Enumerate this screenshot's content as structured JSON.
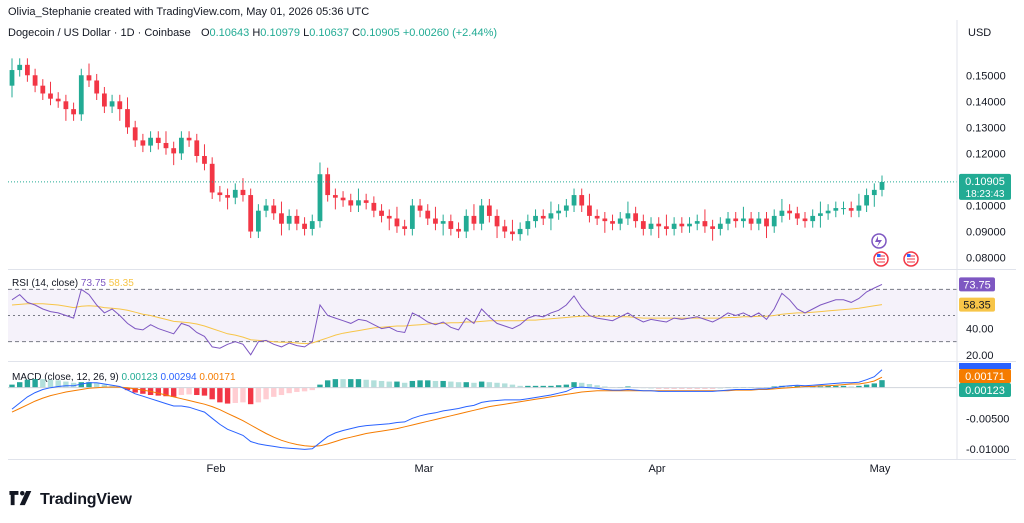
{
  "header": {
    "credit": "Olivia_Stephanie created with TradingView.com, May 01, 2026 05:36 UTC",
    "symbol": "Dogecoin / US Dollar · 1D · Coinbase",
    "open_label": "O",
    "open": "0.10643",
    "high_label": "H",
    "high": "0.10979",
    "low_label": "L",
    "low": "0.10637",
    "close_label": "C",
    "close": "0.10905",
    "change": "+0.00260 (+2.44%)",
    "currency": "USD"
  },
  "brand": {
    "name": "TradingView"
  },
  "colors": {
    "up": "#22ab94",
    "down": "#f23645",
    "rsi": "#7e57c2",
    "rsi_ma": "#f7c548",
    "macd": "#2962ff",
    "signal": "#f57c00"
  },
  "chart_data": [
    {
      "type": "candlestick",
      "title": "Dogecoin / US Dollar · 1D · Coinbase",
      "ylim": [
        0.076,
        0.162
      ],
      "y_ticks": [
        "0.15000",
        "0.14000",
        "0.13000",
        "0.12000",
        "0.10000",
        "0.09000",
        "0.08000"
      ],
      "y_tick_values": [
        0.15,
        0.14,
        0.13,
        0.12,
        0.1,
        0.09,
        0.08
      ],
      "x_ticks": [
        "Feb",
        "Mar",
        "Apr",
        "May"
      ],
      "last_price": "0.10905",
      "countdown": "18:23:43",
      "close": [
        0.152,
        0.154,
        0.15,
        0.146,
        0.143,
        0.141,
        0.14,
        0.137,
        0.135,
        0.15,
        0.148,
        0.143,
        0.138,
        0.14,
        0.137,
        0.13,
        0.125,
        0.123,
        0.126,
        0.124,
        0.122,
        0.12,
        0.126,
        0.125,
        0.119,
        0.116,
        0.105,
        0.104,
        0.103,
        0.106,
        0.104,
        0.09,
        0.098,
        0.1,
        0.097,
        0.093,
        0.096,
        0.093,
        0.091,
        0.094,
        0.112,
        0.104,
        0.103,
        0.102,
        0.1,
        0.102,
        0.101,
        0.098,
        0.096,
        0.095,
        0.092,
        0.091,
        0.1,
        0.098,
        0.095,
        0.093,
        0.094,
        0.091,
        0.09,
        0.096,
        0.093,
        0.1,
        0.096,
        0.092,
        0.09,
        0.089,
        0.091,
        0.094,
        0.096,
        0.095,
        0.097,
        0.098,
        0.1,
        0.104,
        0.1,
        0.096,
        0.095,
        0.094,
        0.093,
        0.095,
        0.097,
        0.094,
        0.091,
        0.093,
        0.092,
        0.091,
        0.093,
        0.092,
        0.093,
        0.094,
        0.092,
        0.091,
        0.093,
        0.095,
        0.094,
        0.095,
        0.093,
        0.095,
        0.092,
        0.096,
        0.098,
        0.097,
        0.095,
        0.094,
        0.096,
        0.097,
        0.098,
        0.099,
        0.099,
        0.098,
        0.1,
        0.104,
        0.106,
        0.109
      ],
      "open": [
        0.146,
        0.152,
        0.154,
        0.15,
        0.146,
        0.143,
        0.141,
        0.14,
        0.137,
        0.135,
        0.15,
        0.148,
        0.143,
        0.138,
        0.14,
        0.137,
        0.13,
        0.125,
        0.123,
        0.126,
        0.124,
        0.122,
        0.12,
        0.126,
        0.125,
        0.119,
        0.116,
        0.105,
        0.104,
        0.103,
        0.106,
        0.104,
        0.09,
        0.098,
        0.1,
        0.097,
        0.093,
        0.096,
        0.093,
        0.091,
        0.094,
        0.112,
        0.104,
        0.103,
        0.102,
        0.1,
        0.102,
        0.101,
        0.098,
        0.096,
        0.095,
        0.092,
        0.091,
        0.1,
        0.098,
        0.095,
        0.093,
        0.094,
        0.091,
        0.09,
        0.096,
        0.093,
        0.1,
        0.096,
        0.092,
        0.09,
        0.089,
        0.091,
        0.094,
        0.096,
        0.095,
        0.097,
        0.098,
        0.1,
        0.104,
        0.1,
        0.096,
        0.095,
        0.094,
        0.093,
        0.095,
        0.097,
        0.094,
        0.091,
        0.093,
        0.092,
        0.091,
        0.093,
        0.092,
        0.093,
        0.094,
        0.092,
        0.091,
        0.093,
        0.095,
        0.094,
        0.095,
        0.093,
        0.095,
        0.092,
        0.096,
        0.098,
        0.097,
        0.095,
        0.094,
        0.096,
        0.097,
        0.098,
        0.099,
        0.099,
        0.098,
        0.1,
        0.104,
        0.106
      ]
    },
    {
      "type": "line",
      "title": "RSI (14, close)",
      "series": [
        {
          "name": "RSI",
          "values": [
            62,
            66,
            60,
            58,
            55,
            53,
            52,
            50,
            48,
            70,
            66,
            58,
            52,
            55,
            50,
            44,
            40,
            39,
            43,
            40,
            38,
            36,
            44,
            42,
            37,
            34,
            26,
            25,
            28,
            30,
            28,
            20,
            30,
            31,
            28,
            26,
            29,
            27,
            26,
            30,
            58,
            50,
            48,
            46,
            44,
            47,
            46,
            43,
            40,
            41,
            38,
            37,
            52,
            49,
            45,
            43,
            45,
            41,
            39,
            48,
            44,
            55,
            49,
            44,
            42,
            40,
            43,
            48,
            50,
            49,
            52,
            54,
            58,
            65,
            56,
            50,
            48,
            47,
            46,
            49,
            52,
            48,
            45,
            47,
            46,
            45,
            48,
            47,
            48,
            49,
            47,
            45,
            48,
            52,
            50,
            52,
            49,
            52,
            47,
            55,
            67,
            62,
            55,
            52,
            55,
            58,
            60,
            62,
            62,
            60,
            63,
            68,
            71,
            73.75
          ]
        },
        {
          "name": "MA",
          "values": [
            58,
            58.5,
            59,
            59,
            59,
            58.5,
            58,
            57,
            56,
            57,
            57.5,
            57,
            56,
            55.5,
            55,
            54,
            52.5,
            51,
            50,
            48.5,
            47,
            45.5,
            45,
            44.5,
            43.5,
            42,
            40,
            38,
            36,
            35,
            33.5,
            31.5,
            31,
            30.5,
            30,
            29.5,
            29.5,
            29,
            28.5,
            29,
            31,
            33,
            35,
            36.5,
            37.5,
            38.5,
            39.5,
            40.5,
            41,
            41.5,
            42,
            42,
            42.5,
            43,
            43.5,
            44,
            44,
            44.5,
            44.5,
            45,
            45,
            45.5,
            46,
            46,
            46,
            46,
            46,
            46.5,
            46.5,
            47,
            47.5,
            48,
            48.5,
            49,
            49.5,
            49.5,
            49.5,
            49.5,
            49.5,
            49,
            49,
            48.5,
            48,
            48,
            48,
            48,
            48,
            48,
            48,
            48,
            48,
            48,
            48,
            48.5,
            48.5,
            49,
            49,
            49.5,
            49.5,
            50,
            51,
            51.5,
            52,
            52,
            52.5,
            53,
            53.5,
            54,
            54.5,
            55,
            55.5,
            56.5,
            57.5,
            58.35
          ]
        }
      ],
      "legend_values": [
        "73.75",
        "58.35"
      ],
      "ylim": [
        16,
        84
      ],
      "y_ticks": [
        "40.00",
        "20.00"
      ],
      "y_tick_values": [
        40,
        20
      ],
      "levels": [
        70,
        50,
        30
      ]
    },
    {
      "type": "bar",
      "title": "MACD (close, 12, 26, 9)",
      "series": [
        {
          "name": "MACD",
          "values": [
            -0.0035,
            -0.0025,
            -0.0015,
            -0.0008,
            -0.0003,
            0.0,
            0.0002,
            0.0003,
            0.0003,
            0.0006,
            0.0008,
            0.0008,
            0.0006,
            0.0004,
            0.0002,
            -0.0004,
            -0.001,
            -0.0014,
            -0.0018,
            -0.0022,
            -0.0026,
            -0.003,
            -0.003,
            -0.0032,
            -0.0036,
            -0.004,
            -0.005,
            -0.006,
            -0.0068,
            -0.0073,
            -0.0078,
            -0.0088,
            -0.0092,
            -0.0094,
            -0.0096,
            -0.0098,
            -0.0099,
            -0.01,
            -0.0101,
            -0.01,
            -0.009,
            -0.008,
            -0.0074,
            -0.007,
            -0.0067,
            -0.0064,
            -0.0062,
            -0.0061,
            -0.006,
            -0.0059,
            -0.0057,
            -0.0056,
            -0.005,
            -0.0046,
            -0.0043,
            -0.0041,
            -0.0038,
            -0.0036,
            -0.0034,
            -0.0031,
            -0.0029,
            -0.0024,
            -0.0022,
            -0.0021,
            -0.002,
            -0.002,
            -0.002,
            -0.0018,
            -0.0016,
            -0.0014,
            -0.0012,
            -0.0009,
            -0.0006,
            0.0,
            0.0001,
            0.0,
            -0.0001,
            -0.0003,
            -0.0004,
            -0.0004,
            -0.0003,
            -0.0004,
            -0.0005,
            -0.0005,
            -0.0006,
            -0.0006,
            -0.0006,
            -0.0006,
            -0.0006,
            -0.0006,
            -0.0006,
            -0.0006,
            -0.0005,
            -0.0004,
            -0.0003,
            -0.0003,
            -0.0003,
            -0.0002,
            -0.0002,
            0.0,
            0.0002,
            0.0003,
            0.0004,
            0.0003,
            0.0004,
            0.0005,
            0.0006,
            0.0007,
            0.0008,
            0.0008,
            0.0009,
            0.0013,
            0.0018,
            0.00294
          ]
        },
        {
          "name": "Signal",
          "values": [
            -0.004,
            -0.0034,
            -0.0028,
            -0.0022,
            -0.0017,
            -0.0013,
            -0.001,
            -0.0007,
            -0.0005,
            -0.0003,
            -0.0001,
            0.0,
            0.0001,
            0.0001,
            0.0001,
            0.0,
            -0.0002,
            -0.0004,
            -0.0006,
            -0.0009,
            -0.0012,
            -0.0015,
            -0.0018,
            -0.0021,
            -0.0024,
            -0.0027,
            -0.0031,
            -0.0036,
            -0.0042,
            -0.0048,
            -0.0054,
            -0.0061,
            -0.0068,
            -0.0075,
            -0.0081,
            -0.0086,
            -0.009,
            -0.0093,
            -0.0095,
            -0.0096,
            -0.0095,
            -0.0092,
            -0.0088,
            -0.0084,
            -0.0081,
            -0.0078,
            -0.0075,
            -0.0073,
            -0.0071,
            -0.0069,
            -0.0067,
            -0.0064,
            -0.0061,
            -0.0058,
            -0.0055,
            -0.0052,
            -0.0049,
            -0.0046,
            -0.0043,
            -0.004,
            -0.0037,
            -0.0034,
            -0.0031,
            -0.0029,
            -0.0027,
            -0.0025,
            -0.0023,
            -0.0021,
            -0.0019,
            -0.0017,
            -0.0015,
            -0.0013,
            -0.0011,
            -0.0009,
            -0.0007,
            -0.0006,
            -0.0005,
            -0.0005,
            -0.0005,
            -0.0005,
            -0.0005,
            -0.0005,
            -0.0005,
            -0.0005,
            -0.0005,
            -0.0005,
            -0.0005,
            -0.0005,
            -0.0005,
            -0.0005,
            -0.0005,
            -0.0005,
            -0.0005,
            -0.0005,
            -0.0004,
            -0.0004,
            -0.0004,
            -0.0003,
            -0.0003,
            -0.0002,
            -0.0001,
            0.0,
            0.0001,
            0.0002,
            0.0002,
            0.0003,
            0.0003,
            0.0004,
            0.0005,
            0.0006,
            0.0006,
            0.0008,
            0.0011,
            0.00171
          ]
        }
      ],
      "legend_values": [
        "0.00123",
        "0.00294",
        "0.00171"
      ],
      "ylim": [
        -0.0115,
        0.0042
      ],
      "y_ticks": [
        "0.00000",
        "-0.00500",
        "-0.01000"
      ],
      "y_tick_values": [
        0.0,
        -0.005,
        -0.01
      ],
      "last_labels": [
        "0.00171",
        "0.00123"
      ]
    }
  ]
}
